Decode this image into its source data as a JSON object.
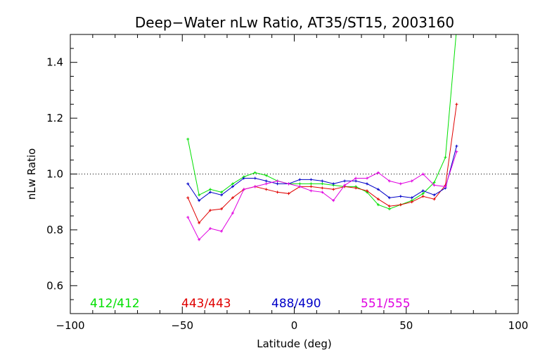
{
  "chart_data": {
    "type": "line",
    "title": "Deep−Water nLw Ratio, AT35/ST15, 2003160",
    "xlabel": "Latitude (deg)",
    "ylabel": "nLw Ratio",
    "xlim": [
      -100,
      100
    ],
    "ylim": [
      0.5,
      1.5
    ],
    "x_ticks": [
      -100,
      -50,
      0,
      50,
      100
    ],
    "x_tick_labels": [
      "−100",
      "−50",
      "0",
      "50",
      "100"
    ],
    "y_ticks": [
      0.6,
      0.8,
      1.0,
      1.2,
      1.4
    ],
    "y_tick_labels": [
      "0.6",
      "0.8",
      "1.0",
      "1.2",
      "1.4"
    ],
    "reference_line": 1.0,
    "grid": false,
    "legend_placement": "bottom",
    "series": [
      {
        "name": "412/412",
        "color": "#00e000",
        "x": [
          -47.5,
          -42.5,
          -37.5,
          -32.5,
          -27.5,
          -22.5,
          -17.5,
          -12.5,
          -7.5,
          -2.5,
          2.5,
          7.5,
          12.5,
          17.5,
          22.5,
          27.5,
          32.5,
          37.5,
          42.5,
          47.5,
          52.5,
          57.5,
          62.5,
          67.5,
          72.5
        ],
        "values": [
          1.125,
          0.925,
          0.945,
          0.935,
          0.965,
          0.99,
          1.005,
          0.995,
          0.975,
          0.965,
          0.965,
          0.965,
          0.965,
          0.96,
          0.955,
          0.955,
          0.935,
          0.89,
          0.875,
          0.89,
          0.905,
          0.93,
          0.97,
          1.06,
          1.52
        ]
      },
      {
        "name": "443/443",
        "color": "#e00000",
        "x": [
          -47.5,
          -42.5,
          -37.5,
          -32.5,
          -27.5,
          -22.5,
          -17.5,
          -12.5,
          -7.5,
          -2.5,
          2.5,
          7.5,
          12.5,
          17.5,
          22.5,
          27.5,
          32.5,
          37.5,
          42.5,
          47.5,
          52.5,
          57.5,
          62.5,
          67.5,
          72.5
        ],
        "values": [
          0.915,
          0.825,
          0.87,
          0.875,
          0.915,
          0.945,
          0.955,
          0.945,
          0.935,
          0.93,
          0.955,
          0.955,
          0.95,
          0.945,
          0.955,
          0.95,
          0.94,
          0.91,
          0.885,
          0.89,
          0.9,
          0.92,
          0.91,
          0.96,
          1.25
        ]
      },
      {
        "name": "488/490",
        "color": "#0000c8",
        "x": [
          -47.5,
          -42.5,
          -37.5,
          -32.5,
          -27.5,
          -22.5,
          -17.5,
          -12.5,
          -7.5,
          -2.5,
          2.5,
          7.5,
          12.5,
          17.5,
          22.5,
          27.5,
          32.5,
          37.5,
          42.5,
          47.5,
          52.5,
          57.5,
          62.5,
          67.5,
          72.5
        ],
        "values": [
          0.965,
          0.905,
          0.935,
          0.925,
          0.955,
          0.985,
          0.985,
          0.975,
          0.965,
          0.965,
          0.98,
          0.98,
          0.975,
          0.965,
          0.975,
          0.975,
          0.965,
          0.945,
          0.915,
          0.92,
          0.915,
          0.94,
          0.925,
          0.95,
          1.1
        ]
      },
      {
        "name": "551/555",
        "color": "#e000e0",
        "x": [
          -47.5,
          -42.5,
          -37.5,
          -32.5,
          -27.5,
          -22.5,
          -17.5,
          -12.5,
          -7.5,
          -2.5,
          2.5,
          7.5,
          12.5,
          17.5,
          22.5,
          27.5,
          32.5,
          37.5,
          42.5,
          47.5,
          52.5,
          57.5,
          62.5,
          67.5,
          72.5
        ],
        "values": [
          0.845,
          0.765,
          0.805,
          0.795,
          0.86,
          0.945,
          0.955,
          0.965,
          0.975,
          0.965,
          0.955,
          0.94,
          0.935,
          0.905,
          0.96,
          0.985,
          0.985,
          1.005,
          0.975,
          0.965,
          0.975,
          1.0,
          0.96,
          0.955,
          1.08
        ]
      }
    ]
  }
}
